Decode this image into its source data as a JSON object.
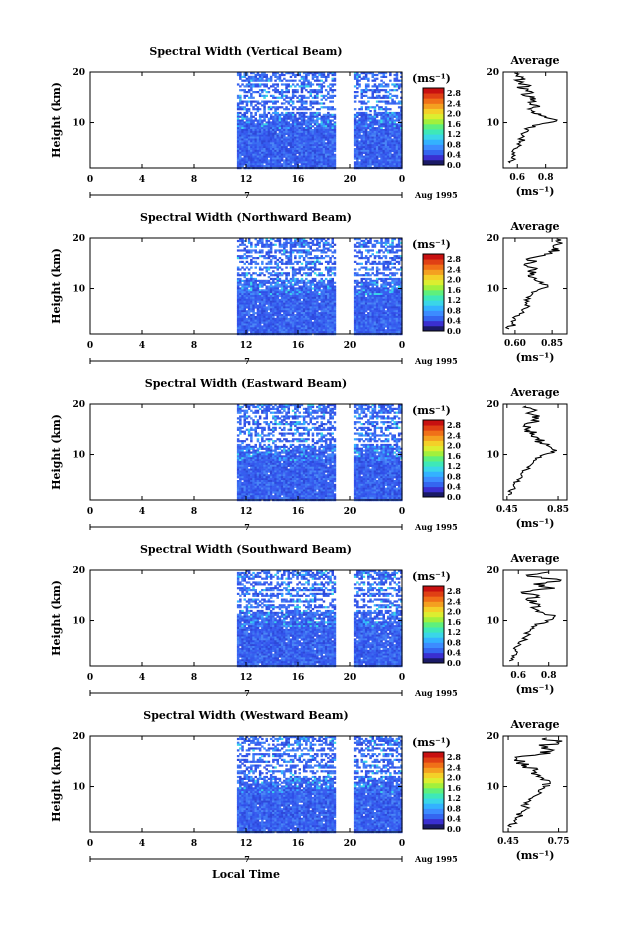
{
  "chart_data": [
    {
      "type": "heatmap",
      "title": "Spectral Width (Vertical Beam)",
      "ylabel": "Height (km)",
      "xlim": [
        0,
        24
      ],
      "ylim": [
        1,
        20
      ],
      "xticks": [
        "0",
        "4",
        "8",
        "12",
        "16",
        "20",
        "0"
      ],
      "yticks": [
        "20",
        "10"
      ],
      "day_label": "7",
      "date_label": "Aug 1995",
      "colorbar": {
        "unit": "(ms⁻¹)",
        "labels": [
          "2.8",
          "2.4",
          "2.0",
          "1.6",
          "1.2",
          "0.8",
          "0.4",
          "0.0"
        ]
      },
      "average": {
        "title": "Average",
        "xlabel": "(ms⁻¹)",
        "xticks": [
          "0.6",
          "0.8"
        ],
        "xlim": [
          0.5,
          0.95
        ],
        "yticks": [
          "20",
          "10"
        ],
        "profile": [
          [
            0.55,
            2
          ],
          [
            0.56,
            3
          ],
          [
            0.58,
            4
          ],
          [
            0.6,
            5
          ],
          [
            0.62,
            6
          ],
          [
            0.63,
            7
          ],
          [
            0.65,
            8
          ],
          [
            0.68,
            9
          ],
          [
            0.78,
            9.8
          ],
          [
            0.88,
            10.5
          ],
          [
            0.8,
            11.2
          ],
          [
            0.72,
            11.8
          ],
          [
            0.7,
            12.5
          ],
          [
            0.76,
            13.2
          ],
          [
            0.68,
            14
          ],
          [
            0.73,
            14.7
          ],
          [
            0.64,
            15.4
          ],
          [
            0.7,
            16.1
          ],
          [
            0.62,
            16.8
          ],
          [
            0.66,
            17.5
          ],
          [
            0.6,
            18.2
          ],
          [
            0.64,
            19
          ],
          [
            0.58,
            19.8
          ]
        ]
      }
    },
    {
      "type": "heatmap",
      "title": "Spectral Width (Northward Beam)",
      "ylabel": "Height (km)",
      "xlim": [
        0,
        24
      ],
      "ylim": [
        1,
        20
      ],
      "xticks": [
        "0",
        "4",
        "8",
        "12",
        "16",
        "20",
        "0"
      ],
      "yticks": [
        "20",
        "10"
      ],
      "day_label": "7",
      "date_label": "Aug 1995",
      "colorbar": {
        "unit": "(ms⁻¹)",
        "labels": [
          "2.8",
          "2.4",
          "2.0",
          "1.6",
          "1.2",
          "0.8",
          "0.4",
          "0.0"
        ]
      },
      "average": {
        "title": "Average",
        "xlabel": "(ms⁻¹)",
        "xticks": [
          "0.60",
          "0.85"
        ],
        "xlim": [
          0.52,
          0.95
        ],
        "yticks": [
          "20",
          "10"
        ],
        "profile": [
          [
            0.56,
            2
          ],
          [
            0.58,
            3
          ],
          [
            0.6,
            4
          ],
          [
            0.63,
            5
          ],
          [
            0.66,
            6
          ],
          [
            0.68,
            7
          ],
          [
            0.7,
            8
          ],
          [
            0.72,
            9
          ],
          [
            0.78,
            10
          ],
          [
            0.82,
            10.7
          ],
          [
            0.76,
            11.4
          ],
          [
            0.72,
            12.2
          ],
          [
            0.7,
            13
          ],
          [
            0.74,
            13.8
          ],
          [
            0.68,
            14.5
          ],
          [
            0.72,
            15.2
          ],
          [
            0.7,
            16
          ],
          [
            0.8,
            16.8
          ],
          [
            0.9,
            17.5
          ],
          [
            0.86,
            18.2
          ],
          [
            0.92,
            19
          ],
          [
            0.88,
            19.8
          ]
        ]
      }
    },
    {
      "type": "heatmap",
      "title": "Spectral Width (Eastward Beam)",
      "ylabel": "Height (km)",
      "xlim": [
        0,
        24
      ],
      "ylim": [
        1,
        20
      ],
      "xticks": [
        "0",
        "4",
        "8",
        "12",
        "16",
        "20",
        "0"
      ],
      "yticks": [
        "20",
        "10"
      ],
      "day_label": "7",
      "date_label": "Aug 1995",
      "colorbar": {
        "unit": "(ms⁻¹)",
        "labels": [
          "2.8",
          "2.4",
          "2.0",
          "1.6",
          "1.2",
          "0.8",
          "0.4",
          "0.0"
        ]
      },
      "average": {
        "title": "Average",
        "xlabel": "(ms⁻¹)",
        "xticks": [
          "0.45",
          "0.85"
        ],
        "xlim": [
          0.42,
          0.92
        ],
        "yticks": [
          "20",
          "10"
        ],
        "profile": [
          [
            0.46,
            2
          ],
          [
            0.48,
            3
          ],
          [
            0.5,
            4
          ],
          [
            0.53,
            5
          ],
          [
            0.56,
            6
          ],
          [
            0.6,
            7
          ],
          [
            0.64,
            8
          ],
          [
            0.68,
            9
          ],
          [
            0.74,
            10
          ],
          [
            0.84,
            10.8
          ],
          [
            0.78,
            11.6
          ],
          [
            0.72,
            12.4
          ],
          [
            0.7,
            13.2
          ],
          [
            0.66,
            14
          ],
          [
            0.62,
            14.8
          ],
          [
            0.58,
            15.6
          ],
          [
            0.66,
            16.4
          ],
          [
            0.7,
            17.2
          ],
          [
            0.64,
            18
          ],
          [
            0.68,
            18.8
          ],
          [
            0.6,
            19.6
          ]
        ]
      }
    },
    {
      "type": "heatmap",
      "title": "Spectral Width (Southward Beam)",
      "ylabel": "Height (km)",
      "xlim": [
        0,
        24
      ],
      "ylim": [
        1,
        20
      ],
      "xticks": [
        "0",
        "4",
        "8",
        "12",
        "16",
        "20",
        "0"
      ],
      "yticks": [
        "20",
        "10"
      ],
      "day_label": "7",
      "date_label": "Aug 1995",
      "colorbar": {
        "unit": "(ms⁻¹)",
        "labels": [
          "2.8",
          "2.4",
          "2.0",
          "1.6",
          "1.2",
          "0.8",
          "0.4",
          "0.0"
        ]
      },
      "average": {
        "title": "Average",
        "xlabel": "(ms⁻¹)",
        "xticks": [
          "0.6",
          "0.8"
        ],
        "xlim": [
          0.5,
          0.92
        ],
        "yticks": [
          "20",
          "10"
        ],
        "profile": [
          [
            0.54,
            2
          ],
          [
            0.56,
            3
          ],
          [
            0.58,
            4
          ],
          [
            0.6,
            5
          ],
          [
            0.63,
            6
          ],
          [
            0.66,
            7
          ],
          [
            0.68,
            8
          ],
          [
            0.72,
            9
          ],
          [
            0.78,
            10
          ],
          [
            0.84,
            10.8
          ],
          [
            0.76,
            11.6
          ],
          [
            0.7,
            12.4
          ],
          [
            0.74,
            13.2
          ],
          [
            0.66,
            14
          ],
          [
            0.72,
            14.8
          ],
          [
            0.62,
            15.6
          ],
          [
            0.84,
            16.4
          ],
          [
            0.7,
            17.2
          ],
          [
            0.88,
            18
          ],
          [
            0.66,
            18.8
          ],
          [
            0.8,
            19.6
          ]
        ]
      }
    },
    {
      "type": "heatmap",
      "title": "Spectral Width (Westward Beam)",
      "ylabel": "Height (km)",
      "xlim": [
        0,
        24
      ],
      "ylim": [
        1,
        20
      ],
      "xticks": [
        "0",
        "4",
        "8",
        "12",
        "16",
        "20",
        "0"
      ],
      "yticks": [
        "20",
        "10"
      ],
      "day_label": "7",
      "date_label": "Aug 1995",
      "xlabel": "Local Time",
      "colorbar": {
        "unit": "(ms⁻¹)",
        "labels": [
          "2.8",
          "2.4",
          "2.0",
          "1.6",
          "1.2",
          "0.8",
          "0.4",
          "0.0"
        ]
      },
      "average": {
        "title": "Average",
        "xlabel": "(ms⁻¹)",
        "xticks": [
          "0.45",
          "0.75"
        ],
        "xlim": [
          0.42,
          0.8
        ],
        "yticks": [
          "20",
          "10"
        ],
        "profile": [
          [
            0.47,
            2
          ],
          [
            0.49,
            3
          ],
          [
            0.51,
            4
          ],
          [
            0.53,
            5
          ],
          [
            0.55,
            6
          ],
          [
            0.57,
            7
          ],
          [
            0.6,
            8
          ],
          [
            0.63,
            9
          ],
          [
            0.66,
            10
          ],
          [
            0.7,
            10.8
          ],
          [
            0.66,
            11.6
          ],
          [
            0.62,
            12.4
          ],
          [
            0.6,
            13.2
          ],
          [
            0.56,
            14
          ],
          [
            0.52,
            14.8
          ],
          [
            0.5,
            15.6
          ],
          [
            0.64,
            16.4
          ],
          [
            0.72,
            17.2
          ],
          [
            0.66,
            18
          ],
          [
            0.74,
            18.8
          ],
          [
            0.68,
            19.6
          ]
        ]
      }
    }
  ]
}
